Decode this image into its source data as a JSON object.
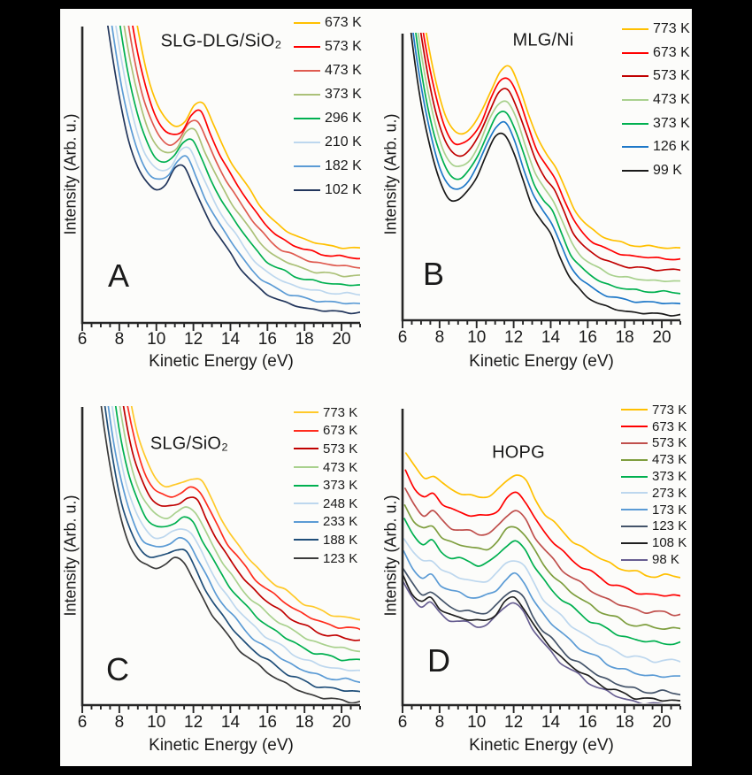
{
  "figure": {
    "background": "#000000",
    "panel_background": "#FCFCFA",
    "text_color": "#1A1A1A",
    "axis_color": "#262626",
    "description": "Four-panel temperature series of electron spectra: Intensity vs Kinetic Energy"
  },
  "chart_data": [
    {
      "id": "A",
      "type": "line",
      "title": "SLG-DLG/SiO₂",
      "panel_label": "A",
      "xlabel": "Kinetic Energy (eV)",
      "ylabel": "Intensity (Arb. u.)",
      "xlim": [
        6,
        21
      ],
      "x_ticks": [
        6,
        8,
        10,
        12,
        14,
        16,
        18,
        20
      ],
      "x_minor_step": 0.5,
      "ylim": [
        0,
        1
      ],
      "grid": false,
      "legend_position": "outside-top-right",
      "representation": "stacked_offset_curves",
      "noise_amp": 0.003,
      "x": [
        6,
        6.5,
        7,
        7.5,
        8,
        8.5,
        9,
        9.5,
        10,
        10.5,
        11,
        11.5,
        12,
        12.5,
        13,
        13.5,
        14,
        14.5,
        15,
        15.5,
        16,
        16.5,
        17,
        17.5,
        18,
        18.5,
        19,
        19.5,
        20,
        20.5,
        21
      ],
      "base_y": [
        1.75,
        1.45,
        1.18,
        0.95,
        0.76,
        0.62,
        0.525,
        0.47,
        0.452,
        0.468,
        0.52,
        0.528,
        0.46,
        0.39,
        0.33,
        0.28,
        0.235,
        0.19,
        0.15,
        0.118,
        0.097,
        0.082,
        0.068,
        0.058,
        0.051,
        0.046,
        0.042,
        0.039,
        0.037,
        0.036,
        0.035
      ],
      "series": [
        {
          "label": "673 K",
          "temperature_K": 673,
          "color": "#FFC000",
          "offset": 0.213,
          "x_shift": 1.05
        },
        {
          "label": "573 K",
          "temperature_K": 573,
          "color": "#FF0000",
          "offset": 0.182,
          "x_shift": 0.9
        },
        {
          "label": "473 K",
          "temperature_K": 473,
          "color": "#DF5B50",
          "offset": 0.152,
          "x_shift": 0.75
        },
        {
          "label": "373 K",
          "temperature_K": 373,
          "color": "#ABC178",
          "offset": 0.122,
          "x_shift": 0.6
        },
        {
          "label": "296 K",
          "temperature_K": 296,
          "color": "#00B050",
          "offset": 0.091,
          "x_shift": 0.45
        },
        {
          "label": "210 K",
          "temperature_K": 210,
          "color": "#BDD7EE",
          "offset": 0.061,
          "x_shift": 0.3
        },
        {
          "label": "182 K",
          "temperature_K": 182,
          "color": "#5B9BD5",
          "offset": 0.03,
          "x_shift": 0.15
        },
        {
          "label": "102 K",
          "temperature_K": 102,
          "color": "#22365C",
          "offset": 0.0,
          "x_shift": 0.0
        }
      ]
    },
    {
      "id": "B",
      "type": "line",
      "title": "MLG/Ni",
      "panel_label": "B",
      "xlabel": "Kinetic Energy (eV)",
      "ylabel": "Intensity (Arb. u.)",
      "xlim": [
        6,
        21
      ],
      "x_ticks": [
        6,
        8,
        10,
        12,
        14,
        16,
        18,
        20
      ],
      "x_minor_step": 0.5,
      "ylim": [
        0,
        1
      ],
      "grid": false,
      "legend_position": "outside-top-right",
      "representation": "stacked_offset_curves",
      "noise_amp": 0.003,
      "x": [
        6,
        6.5,
        7,
        7.5,
        8,
        8.5,
        9,
        9.5,
        10,
        10.5,
        11,
        11.5,
        12,
        12.5,
        13,
        13.5,
        14,
        14.5,
        15,
        15.5,
        16,
        16.5,
        17,
        17.5,
        18,
        18.5,
        19,
        19.5,
        20,
        20.5,
        21
      ],
      "base_y": [
        1.28,
        0.98,
        0.76,
        0.6,
        0.487,
        0.428,
        0.42,
        0.447,
        0.5,
        0.575,
        0.638,
        0.648,
        0.585,
        0.49,
        0.4,
        0.345,
        0.3,
        0.225,
        0.152,
        0.11,
        0.082,
        0.062,
        0.048,
        0.038,
        0.032,
        0.028,
        0.025,
        0.023,
        0.021,
        0.02,
        0.019
      ],
      "series": [
        {
          "label": "773 K",
          "temperature_K": 773,
          "color": "#FFC000",
          "offset": 0.232,
          "x_shift": 0.3
        },
        {
          "label": "673 K",
          "temperature_K": 673,
          "color": "#FF0000",
          "offset": 0.194,
          "x_shift": 0.25
        },
        {
          "label": "573 K",
          "temperature_K": 573,
          "color": "#C00000",
          "offset": 0.155,
          "x_shift": 0.2
        },
        {
          "label": "473 K",
          "temperature_K": 473,
          "color": "#A9D18E",
          "offset": 0.116,
          "x_shift": 0.15
        },
        {
          "label": "373 K",
          "temperature_K": 373,
          "color": "#00B050",
          "offset": 0.077,
          "x_shift": 0.1
        },
        {
          "label": "126 K",
          "temperature_K": 126,
          "color": "#1E78C8",
          "offset": 0.039,
          "x_shift": 0.05
        },
        {
          "label": "99 K",
          "temperature_K": 99,
          "color": "#1A1A1A",
          "offset": 0.0,
          "x_shift": 0.0
        }
      ]
    },
    {
      "id": "C",
      "type": "line",
      "title": "SLG/SiO₂",
      "panel_label": "C",
      "xlabel": "Kinetic Energy (eV)",
      "ylabel": "Intensity (Arb. u.)",
      "xlim": [
        6,
        21
      ],
      "x_ticks": [
        6,
        8,
        10,
        12,
        14,
        16,
        18,
        20
      ],
      "x_minor_step": 0.5,
      "ylim": [
        0,
        1
      ],
      "grid": false,
      "legend_position": "outside-top-right",
      "representation": "stacked_offset_curves",
      "noise_amp": 0.004,
      "x": [
        6,
        6.5,
        7,
        7.5,
        8,
        8.5,
        9,
        9.5,
        10,
        10.5,
        11,
        11.5,
        12,
        12.5,
        13,
        13.5,
        14,
        14.5,
        15,
        15.5,
        16,
        16.5,
        17,
        17.5,
        18,
        18.5,
        19,
        19.5,
        20,
        20.5,
        21
      ],
      "base_y": [
        1.65,
        1.32,
        1.02,
        0.8,
        0.645,
        0.55,
        0.49,
        0.465,
        0.462,
        0.475,
        0.492,
        0.478,
        0.42,
        0.36,
        0.305,
        0.262,
        0.222,
        0.187,
        0.157,
        0.132,
        0.112,
        0.09,
        0.071,
        0.055,
        0.042,
        0.032,
        0.025,
        0.02,
        0.016,
        0.013,
        0.011
      ],
      "series": [
        {
          "label": "773 K",
          "temperature_K": 773,
          "color": "#FFC929",
          "offset": 0.272,
          "x_shift": 0.96
        },
        {
          "label": "673 K",
          "temperature_K": 673,
          "color": "#FF2D1E",
          "offset": 0.238,
          "x_shift": 0.84
        },
        {
          "label": "573 K",
          "temperature_K": 573,
          "color": "#C00000",
          "offset": 0.204,
          "x_shift": 0.72
        },
        {
          "label": "473 K",
          "temperature_K": 473,
          "color": "#A9D18E",
          "offset": 0.17,
          "x_shift": 0.6
        },
        {
          "label": "373 K",
          "temperature_K": 373,
          "color": "#00B050",
          "offset": 0.136,
          "x_shift": 0.48
        },
        {
          "label": "248 K",
          "temperature_K": 248,
          "color": "#BDD7EE",
          "offset": 0.102,
          "x_shift": 0.36
        },
        {
          "label": "233 K",
          "temperature_K": 233,
          "color": "#5B9BD5",
          "offset": 0.068,
          "x_shift": 0.24
        },
        {
          "label": "188 K",
          "temperature_K": 188,
          "color": "#1F4E79",
          "offset": 0.034,
          "x_shift": 0.12
        },
        {
          "label": "123 K",
          "temperature_K": 123,
          "color": "#3B3B3B",
          "offset": 0.0,
          "x_shift": 0.0
        }
      ]
    },
    {
      "id": "D",
      "type": "line",
      "title": "HOPG",
      "panel_label": "D",
      "xlabel": "Kinetic Energy (eV)",
      "ylabel": "Intensity (Arb. u.)",
      "xlim": [
        6,
        21
      ],
      "x_ticks": [
        6,
        8,
        10,
        12,
        14,
        16,
        18,
        20
      ],
      "x_minor_step": 0.5,
      "ylim": [
        0,
        1
      ],
      "grid": false,
      "legend_position": "outside-top-right",
      "representation": "stacked_offset_curves",
      "noise_amp": 0.005,
      "x": [
        6,
        6.5,
        7,
        7.5,
        8,
        8.5,
        9,
        9.5,
        10,
        10.5,
        11,
        11.5,
        12,
        12.5,
        13,
        13.5,
        14,
        14.5,
        15,
        15.5,
        16,
        16.5,
        17,
        17.5,
        18,
        18.5,
        19,
        19.5,
        20,
        20.5,
        21
      ],
      "base_y": [
        0.42,
        0.365,
        0.335,
        0.345,
        0.31,
        0.292,
        0.283,
        0.275,
        0.268,
        0.272,
        0.295,
        0.33,
        0.345,
        0.318,
        0.262,
        0.215,
        0.18,
        0.15,
        0.122,
        0.1,
        0.08,
        0.062,
        0.046,
        0.032,
        0.021,
        0.013,
        0.007,
        0.004,
        0.002,
        0.001,
        0.0
      ],
      "series": [
        {
          "label": "773 K",
          "temperature_K": 773,
          "color": "#FFC000",
          "offset": 0.433,
          "x_shift": 0.18
        },
        {
          "label": "673 K",
          "temperature_K": 673,
          "color": "#FF0000",
          "offset": 0.368,
          "x_shift": 0.16
        },
        {
          "label": "573 K",
          "temperature_K": 573,
          "color": "#C0504D",
          "offset": 0.309,
          "x_shift": 0.14
        },
        {
          "label": "473 K",
          "temperature_K": 473,
          "color": "#7E9E3E",
          "offset": 0.258,
          "x_shift": 0.12
        },
        {
          "label": "373 K",
          "temperature_K": 373,
          "color": "#00B050",
          "offset": 0.208,
          "x_shift": 0.1
        },
        {
          "label": "273 K",
          "temperature_K": 273,
          "color": "#BDD7EE",
          "offset": 0.148,
          "x_shift": 0.08
        },
        {
          "label": "173 K",
          "temperature_K": 173,
          "color": "#5B9BD5",
          "offset": 0.095,
          "x_shift": 0.06
        },
        {
          "label": "123 K",
          "temperature_K": 123,
          "color": "#44546A",
          "offset": 0.041,
          "x_shift": 0.04
        },
        {
          "label": "108 K",
          "temperature_K": 108,
          "color": "#1F1F1F",
          "offset": 0.015,
          "x_shift": 0.02
        },
        {
          "label": "98 K",
          "temperature_K": 98,
          "color": "#675E91",
          "offset": 0.0,
          "x_shift": 0.0
        }
      ]
    }
  ]
}
